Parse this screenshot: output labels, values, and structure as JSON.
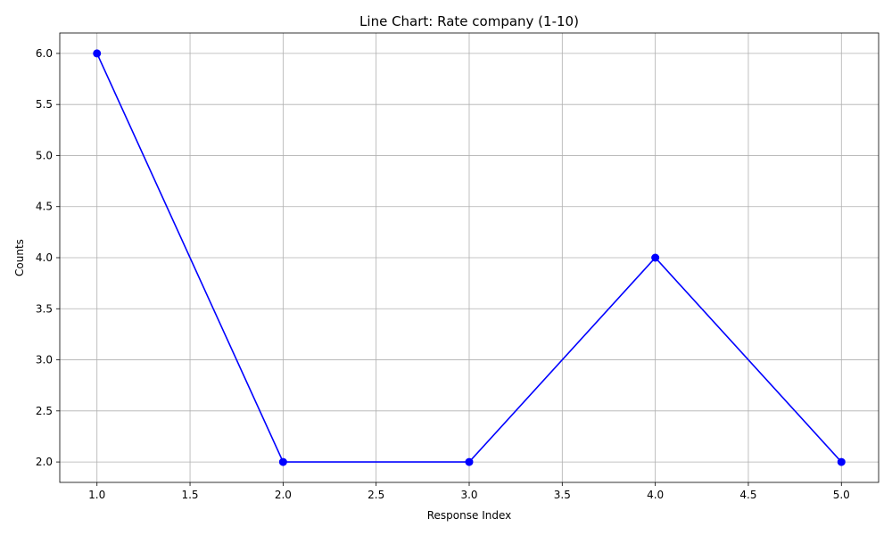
{
  "chart_data": {
    "type": "line",
    "title": "Line Chart: Rate company (1-10)",
    "xlabel": "Response Index",
    "ylabel": "Counts",
    "xlim": [
      0.8,
      5.2
    ],
    "ylim": [
      1.8,
      6.2
    ],
    "xticks": [
      "1.0",
      "1.5",
      "2.0",
      "2.5",
      "3.0",
      "3.5",
      "4.0",
      "4.5",
      "5.0"
    ],
    "yticks": [
      "2.0",
      "2.5",
      "3.0",
      "3.5",
      "4.0",
      "4.5",
      "5.0",
      "5.5",
      "6.0"
    ],
    "grid": true,
    "series": [
      {
        "color": "#0000ff",
        "marker": "circle",
        "x": [
          1,
          2,
          3,
          4,
          5
        ],
        "y": [
          6,
          2,
          2,
          4,
          2
        ]
      }
    ]
  }
}
